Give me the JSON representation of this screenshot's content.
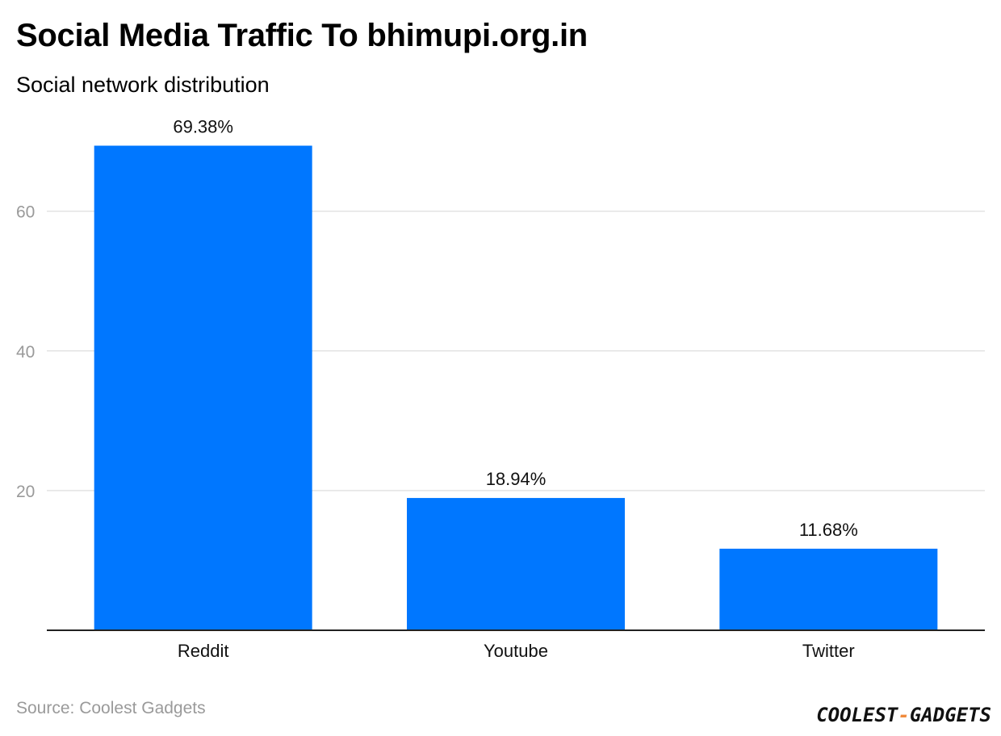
{
  "header": {
    "title": "Social Media Traffic To bhimupi.org.in",
    "subtitle": "Social network distribution"
  },
  "footer": {
    "source": "Source: Coolest Gadgets",
    "logo": {
      "left": "COOLEST",
      "sep": "-",
      "right": "GADGETS"
    }
  },
  "colors": {
    "bar": "#0077ff",
    "grid": "#e3e3e3",
    "axis": "#222222",
    "tick_label": "#9a9a9a",
    "logo_accent": "#f08a3c"
  },
  "chart_data": {
    "type": "bar",
    "categories": [
      "Reddit",
      "Youtube",
      "Twitter"
    ],
    "values": [
      69.38,
      18.94,
      11.68
    ],
    "value_labels": [
      "69.38%",
      "18.94%",
      "11.68%"
    ],
    "yticks": [
      20,
      40,
      60
    ],
    "ylim": [
      0,
      80
    ],
    "grid": true,
    "legend": "none",
    "xlabel": "",
    "ylabel": ""
  }
}
